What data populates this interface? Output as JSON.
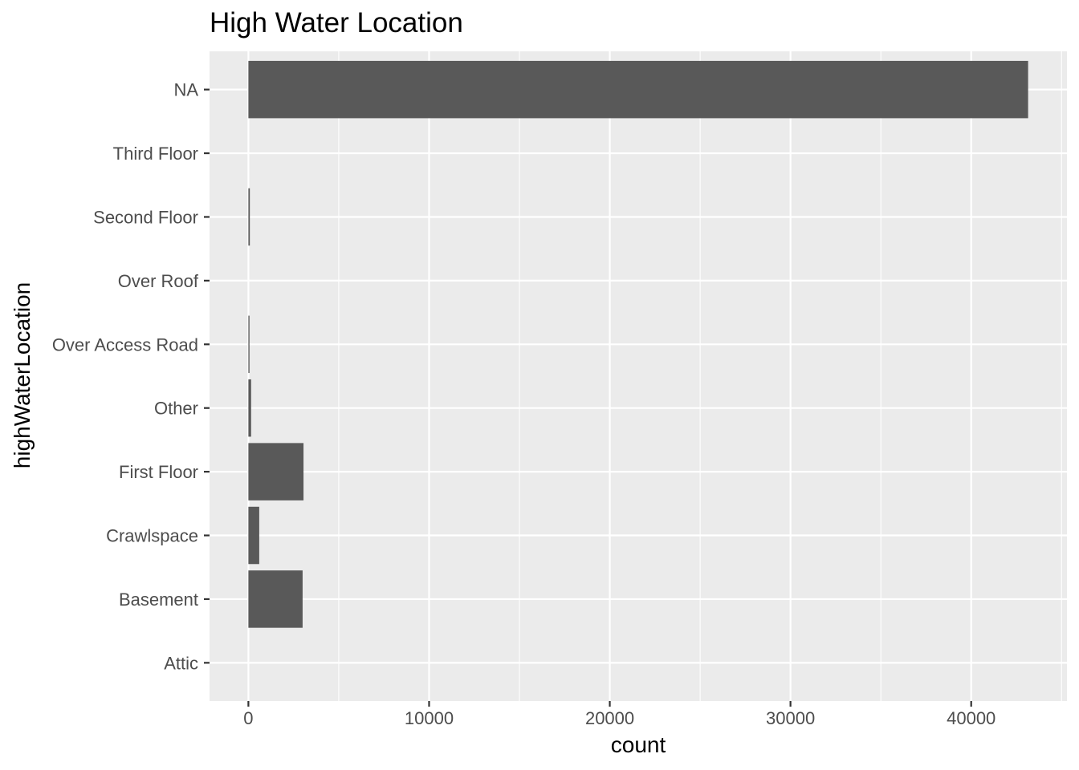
{
  "chart_data": {
    "type": "bar",
    "orientation": "horizontal",
    "title": "High Water Location",
    "xlabel": "count",
    "ylabel": "highWaterLocation",
    "categories": [
      "Attic",
      "Basement",
      "Crawlspace",
      "First Floor",
      "Other",
      "Over Access Road",
      "Over Roof",
      "Second Floor",
      "Third Floor",
      "NA"
    ],
    "values": [
      0,
      3000,
      600,
      3050,
      150,
      60,
      0,
      80,
      0,
      43150
    ],
    "xlim": [
      -2150,
      45300
    ],
    "x_ticks": [
      0,
      10000,
      20000,
      30000,
      40000
    ],
    "x_tick_labels": [
      "0",
      "10000",
      "20000",
      "30000",
      "40000"
    ],
    "grid": true,
    "colors": {
      "panel": "#ebebeb",
      "grid": "#ffffff",
      "bar": "#595959",
      "tick_text": "#4d4d4d",
      "tick_mark": "#333333"
    }
  }
}
